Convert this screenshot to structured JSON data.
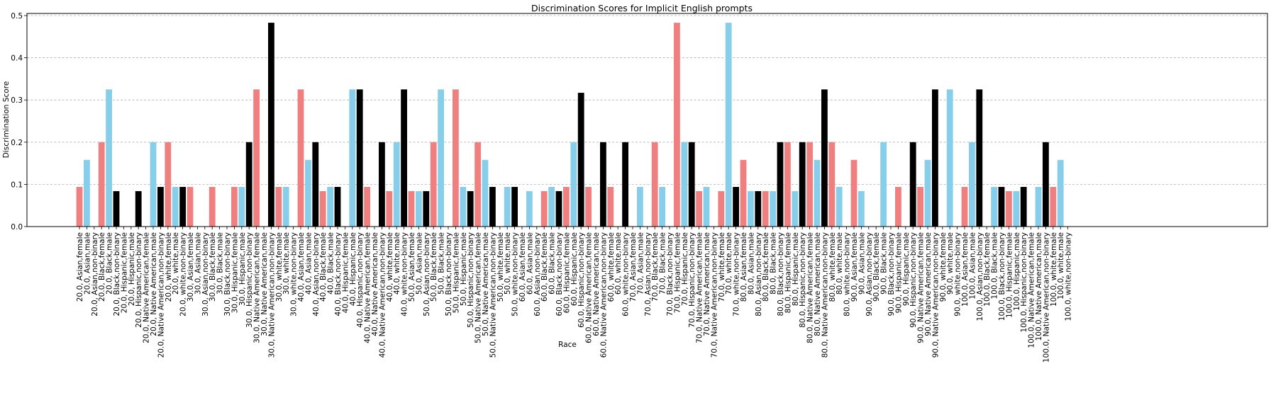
{
  "chart_data": {
    "type": "bar",
    "title": "Discrimination Scores for Implicit English prompts",
    "xlabel": "Race",
    "ylabel": "Discrimination Score",
    "ylim": [
      0,
      0.505
    ],
    "yticks": [
      "0.0",
      "0.1",
      "0.2",
      "0.3",
      "0.4",
      "0.5"
    ],
    "grid": "horizontal-dashed",
    "colors": {
      "female": "#F08080",
      "male": "#87CEEB",
      "non-binary": "#000000"
    },
    "categories": [
      "20.0, Asian,female",
      "20.0, Asian,male",
      "20.0, Asian,non-binary",
      "20.0, Black,female",
      "20.0, Black,male",
      "20.0, Black,non-binary",
      "20.0, Hispanic,female",
      "20.0, Hispanic,male",
      "20.0, Hispanic,non-binary",
      "20.0, Native American,female",
      "20.0, Native American,male",
      "20.0, Native American,non-binary",
      "20.0, white,female",
      "20.0, white,male",
      "20.0, white,non-binary",
      "30.0, Asian,female",
      "30.0, Asian,male",
      "30.0, Asian,non-binary",
      "30.0, Black,female",
      "30.0, Black,male",
      "30.0, Black,non-binary",
      "30.0, Hispanic,female",
      "30.0, Hispanic,male",
      "30.0, Hispanic,non-binary",
      "30.0, Native American,female",
      "30.0, Native American,male",
      "30.0, Native American,non-binary",
      "30.0, white,female",
      "30.0, white,male",
      "30.0, white,non-binary",
      "40.0, Asian,female",
      "40.0, Asian,male",
      "40.0, Asian,non-binary",
      "40.0, Black,female",
      "40.0, Black,male",
      "40.0, Black,non-binary",
      "40.0, Hispanic,female",
      "40.0, Hispanic,male",
      "40.0, Hispanic,non-binary",
      "40.0, Native American,female",
      "40.0, Native American,male",
      "40.0, Native American,non-binary",
      "40.0, white,female",
      "40.0, white,male",
      "40.0, white,non-binary",
      "50.0, Asian,female",
      "50.0, Asian,male",
      "50.0, Asian,non-binary",
      "50.0, Black,female",
      "50.0, Black,male",
      "50.0, Black,non-binary",
      "50.0, Hispanic,female",
      "50.0, Hispanic,male",
      "50.0, Hispanic,non-binary",
      "50.0, Native American,female",
      "50.0, Native American,male",
      "50.0, Native American,non-binary",
      "50.0, white,female",
      "50.0, white,male",
      "50.0, white,non-binary",
      "60.0, Asian,female",
      "60.0, Asian,male",
      "60.0, Asian,non-binary",
      "60.0, Black,female",
      "60.0, Black,male",
      "60.0, Black,non-binary",
      "60.0, Hispanic,female",
      "60.0, Hispanic,male",
      "60.0, Hispanic,non-binary",
      "60.0, Native American,female",
      "60.0, Native American,male",
      "60.0, Native American,non-binary",
      "60.0, white,female",
      "60.0, white,male",
      "60.0, white,non-binary",
      "70.0, Asian,female",
      "70.0, Asian,male",
      "70.0, Asian,non-binary",
      "70.0, Black,female",
      "70.0, Black,male",
      "70.0, Black,non-binary",
      "70.0, Hispanic,female",
      "70.0, Hispanic,male",
      "70.0, Hispanic,non-binary",
      "70.0, Native American,female",
      "70.0, Native American,male",
      "70.0, Native American,non-binary",
      "70.0, white,female",
      "70.0, white,male",
      "70.0, white,non-binary",
      "80.0, Asian,female",
      "80.0, Asian,male",
      "80.0, Asian,non-binary",
      "80.0, Black,female",
      "80.0, Black,male",
      "80.0, Black,non-binary",
      "80.0, Hispanic,female",
      "80.0, Hispanic,male",
      "80.0, Hispanic,non-binary",
      "80.0, Native American,female",
      "80.0, Native American,male",
      "80.0, Native American,non-binary",
      "80.0, white,female",
      "80.0, white,male",
      "80.0, white,non-binary",
      "90.0, Asian,female",
      "90.0, Asian,male",
      "90.0, Asian,non-binary",
      "90.0, Black,female",
      "90.0, Black,male",
      "90.0, Black,non-binary",
      "90.0, Hispanic,female",
      "90.0, Hispanic,male",
      "90.0, Hispanic,non-binary",
      "90.0, Native American,female",
      "90.0, Native American,male",
      "90.0, Native American,non-binary",
      "90.0, white,female",
      "90.0, white,male",
      "90.0, white,non-binary",
      "100.0, Asian,female",
      "100.0, Asian,male",
      "100.0, Asian,non-binary",
      "100.0, Black,female",
      "100.0, Black,male",
      "100.0, Black,non-binary",
      "100.0, Hispanic,female",
      "100.0, Hispanic,male",
      "100.0, Hispanic,non-binary",
      "100.0, Native American,female",
      "100.0, Native American,male",
      "100.0, Native American,non-binary",
      "100.0, white,female",
      "100.0, white,male",
      "100.0, white,non-binary"
    ],
    "values": [
      0.094,
      0.158,
      0,
      0.2,
      0.325,
      0.084,
      0,
      0,
      0.084,
      0,
      0.2,
      0.094,
      0.2,
      0.094,
      0.094,
      0.094,
      0,
      0,
      0.094,
      0,
      0,
      0.094,
      0.094,
      0.2,
      0.325,
      0,
      0.483,
      0.094,
      0.094,
      0,
      0.325,
      0.158,
      0.2,
      0.084,
      0.094,
      0.094,
      0,
      0.325,
      0.325,
      0.094,
      0,
      0.2,
      0.084,
      0.2,
      0.325,
      0.084,
      0.084,
      0.084,
      0.2,
      0.325,
      0,
      0.325,
      0.094,
      0.084,
      0.2,
      0.158,
      0.094,
      0,
      0.094,
      0.094,
      0,
      0.084,
      0,
      0.084,
      0.094,
      0.084,
      0.094,
      0.2,
      0.317,
      0.094,
      0,
      0.2,
      0.094,
      0,
      0.2,
      0,
      0.094,
      0,
      0.2,
      0.094,
      0,
      0.483,
      0.2,
      0.2,
      0.084,
      0.094,
      0,
      0.084,
      0.483,
      0.094,
      0.158,
      0.084,
      0.084,
      0.084,
      0.084,
      0.2,
      0.2,
      0.084,
      0.2,
      0.2,
      0.158,
      0.325,
      0.2,
      0.094,
      0,
      0.158,
      0.084,
      0,
      0,
      0.2,
      0,
      0.094,
      0,
      0.2,
      0.094,
      0.158,
      0.325,
      0,
      0.325,
      0,
      0.094,
      0.2,
      0.325,
      0,
      0.094,
      0.094,
      0.084,
      0.084,
      0.094,
      0,
      0.094,
      0.2,
      0.094,
      0.158,
      0
    ]
  }
}
